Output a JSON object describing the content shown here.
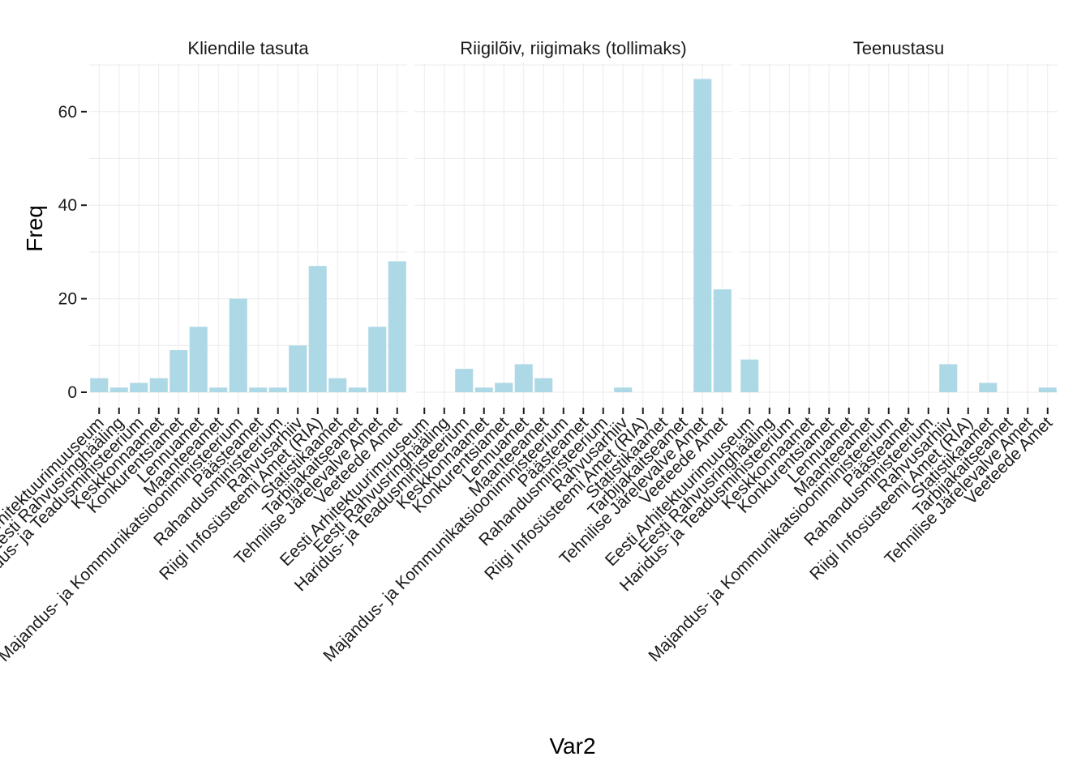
{
  "chart_data": {
    "type": "bar",
    "xlabel": "Var2",
    "ylabel": "Freq",
    "ylim": [
      0,
      70
    ],
    "yticks": [
      0,
      20,
      40,
      60
    ],
    "grid": true,
    "bar_color": "#add8e6",
    "categories": [
      "Eesti Arhitektuurimuuseum",
      "Eesti Rahvusringhääling",
      "Haridus- ja Teadusministeerium",
      "Keskkonnaamet",
      "Konkurentsiamet",
      "Lennuamet",
      "Maanteeamet",
      "Majandus- ja Kommunikatsiooniministeerium",
      "Päästeamet",
      "Rahandusministeerium",
      "Rahvusarhiiv",
      "Riigi Infosüsteemi Amet (RIA)",
      "Statistikaamet",
      "Tarbijakaitseamet",
      "Tehnilise Järelevalve Amet",
      "Veeteede Amet"
    ],
    "facets": [
      {
        "name": "Kliendile tasuta",
        "values": [
          3,
          1,
          2,
          3,
          9,
          14,
          1,
          20,
          1,
          1,
          10,
          27,
          3,
          1,
          14,
          28
        ]
      },
      {
        "name": "Riigilõiv, riigimaks (tollimaks)",
        "values": [
          0,
          0,
          5,
          1,
          2,
          6,
          3,
          0,
          0,
          0,
          1,
          0,
          0,
          0,
          67,
          22
        ]
      },
      {
        "name": "Teenustasu",
        "values": [
          7,
          0,
          0,
          0,
          0,
          0,
          0,
          0,
          0,
          0,
          6,
          0,
          2,
          0,
          0,
          1
        ]
      }
    ]
  }
}
